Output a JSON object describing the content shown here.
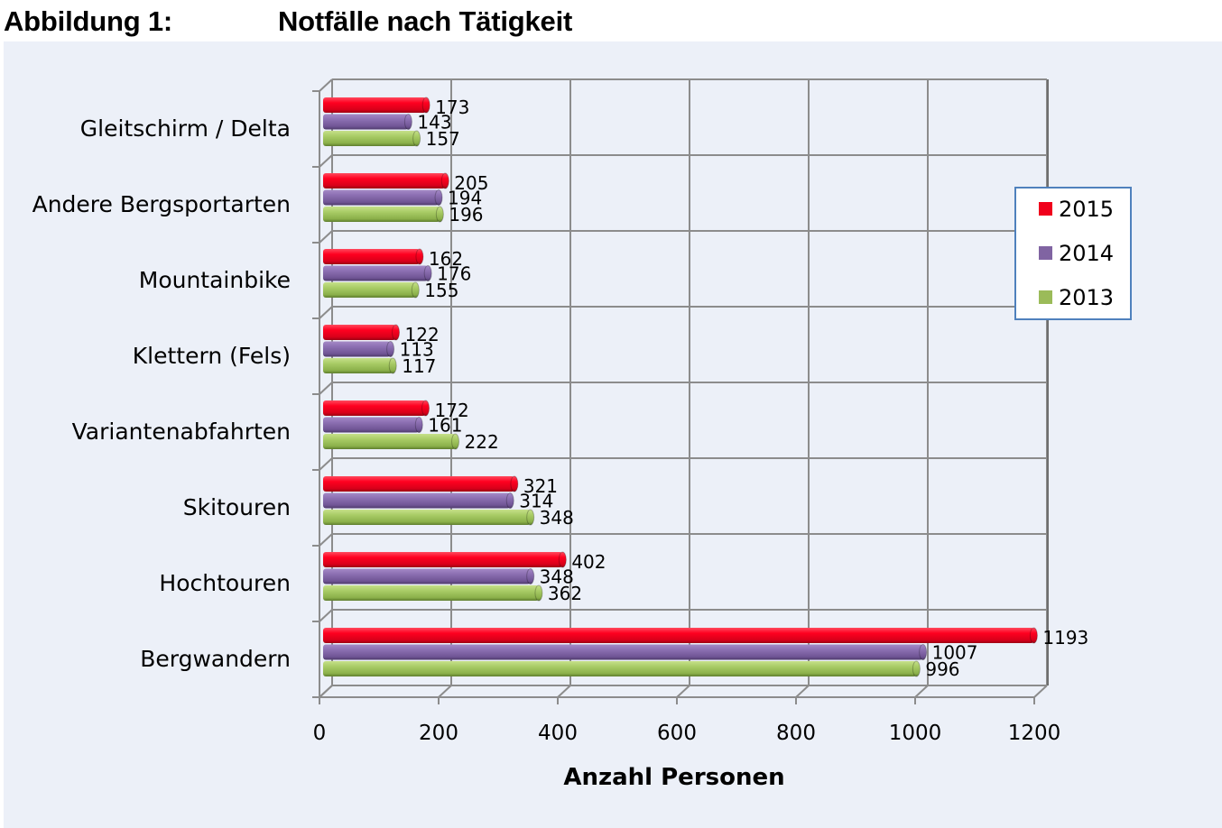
{
  "heading": {
    "number": "Abbildung 1:",
    "title": "Notfälle nach Tätigkeit"
  },
  "chart_data": {
    "type": "bar",
    "orientation": "horizontal",
    "style": "3d-cylinder",
    "title": "Notfälle nach Tätigkeit",
    "xlabel": "Anzahl Personen",
    "ylabel": "",
    "xlim": [
      0,
      1200
    ],
    "x_ticks": [
      0,
      200,
      400,
      600,
      800,
      1000,
      1200
    ],
    "x_tick_labels": [
      "0",
      "200",
      "400",
      "600",
      "800",
      "1000",
      "1200"
    ],
    "grid": true,
    "legend_position": "right",
    "categories": [
      "Gleitschirm / Delta",
      "Andere Bergsportarten",
      "Mountainbike",
      "Klettern (Fels)",
      "Variantenabfahrten",
      "Skitouren",
      "Hochtouren",
      "Bergwandern"
    ],
    "series": [
      {
        "name": "2015",
        "color": "#f0001c",
        "values": [
          173,
          205,
          162,
          122,
          172,
          321,
          402,
          1193
        ]
      },
      {
        "name": "2014",
        "color": "#8064a2",
        "values": [
          143,
          194,
          176,
          113,
          161,
          314,
          348,
          1007
        ]
      },
      {
        "name": "2013",
        "color": "#9bbb59",
        "values": [
          157,
          196,
          155,
          117,
          222,
          348,
          362,
          996
        ]
      }
    ]
  },
  "colors": {
    "background": "#ecf0f8",
    "grid": "#8c8c8c",
    "legend_border": "#4f81bd"
  }
}
